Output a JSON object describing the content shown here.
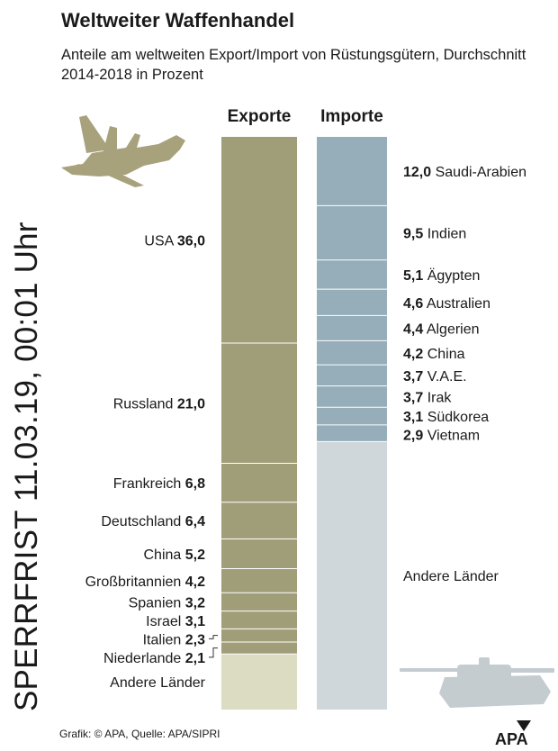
{
  "header": {
    "title": "Weltweiter Waffenhandel",
    "subtitle": "Anteile am weltweiten Export/Import von Rüstungsgütern, Durchschnitt 2014-2018 in Prozent"
  },
  "embargo": "SPERRFRIST 11.03.19, 00:01 Uhr",
  "footer": {
    "source": "Grafik: © APA, Quelle: APA/SIPRI",
    "logo": "APA"
  },
  "icons": [
    "fighter-jet-icon",
    "tank-icon"
  ],
  "colors": {
    "exports": "#a09e78",
    "exports_other": "#dcdcc2",
    "imports": "#95aeb9",
    "imports_other": "#cfd7db"
  },
  "chart_data": {
    "type": "bar",
    "stacked": true,
    "unit": "%",
    "series": [
      {
        "name": "Exporte",
        "categories": [
          "USA",
          "Russland",
          "Frankreich",
          "Deutschland",
          "China",
          "Großbritannien",
          "Spanien",
          "Israel",
          "Italien",
          "Niederlande",
          "Andere Länder"
        ],
        "values": [
          36.0,
          21.0,
          6.8,
          6.4,
          5.2,
          4.2,
          3.2,
          3.1,
          2.3,
          2.1,
          null
        ],
        "labels": [
          "36,0",
          "21,0",
          "6,8",
          "6,4",
          "5,2",
          "4,2",
          "3,2",
          "3,1",
          "2,3",
          "2,1",
          ""
        ]
      },
      {
        "name": "Importe",
        "categories": [
          "Saudi-Arabien",
          "Indien",
          "Ägypten",
          "Australien",
          "Algerien",
          "China",
          "V.A.E.",
          "Irak",
          "Südkorea",
          "Vietnam",
          "Andere Länder"
        ],
        "values": [
          12.0,
          9.5,
          5.1,
          4.6,
          4.4,
          4.2,
          3.7,
          3.7,
          3.1,
          2.9,
          null
        ],
        "labels": [
          "12,0",
          "9,5",
          "5,1",
          "4,6",
          "4,4",
          "4,2",
          "3,7",
          "3,7",
          "3,1",
          "2,9",
          ""
        ]
      }
    ]
  }
}
